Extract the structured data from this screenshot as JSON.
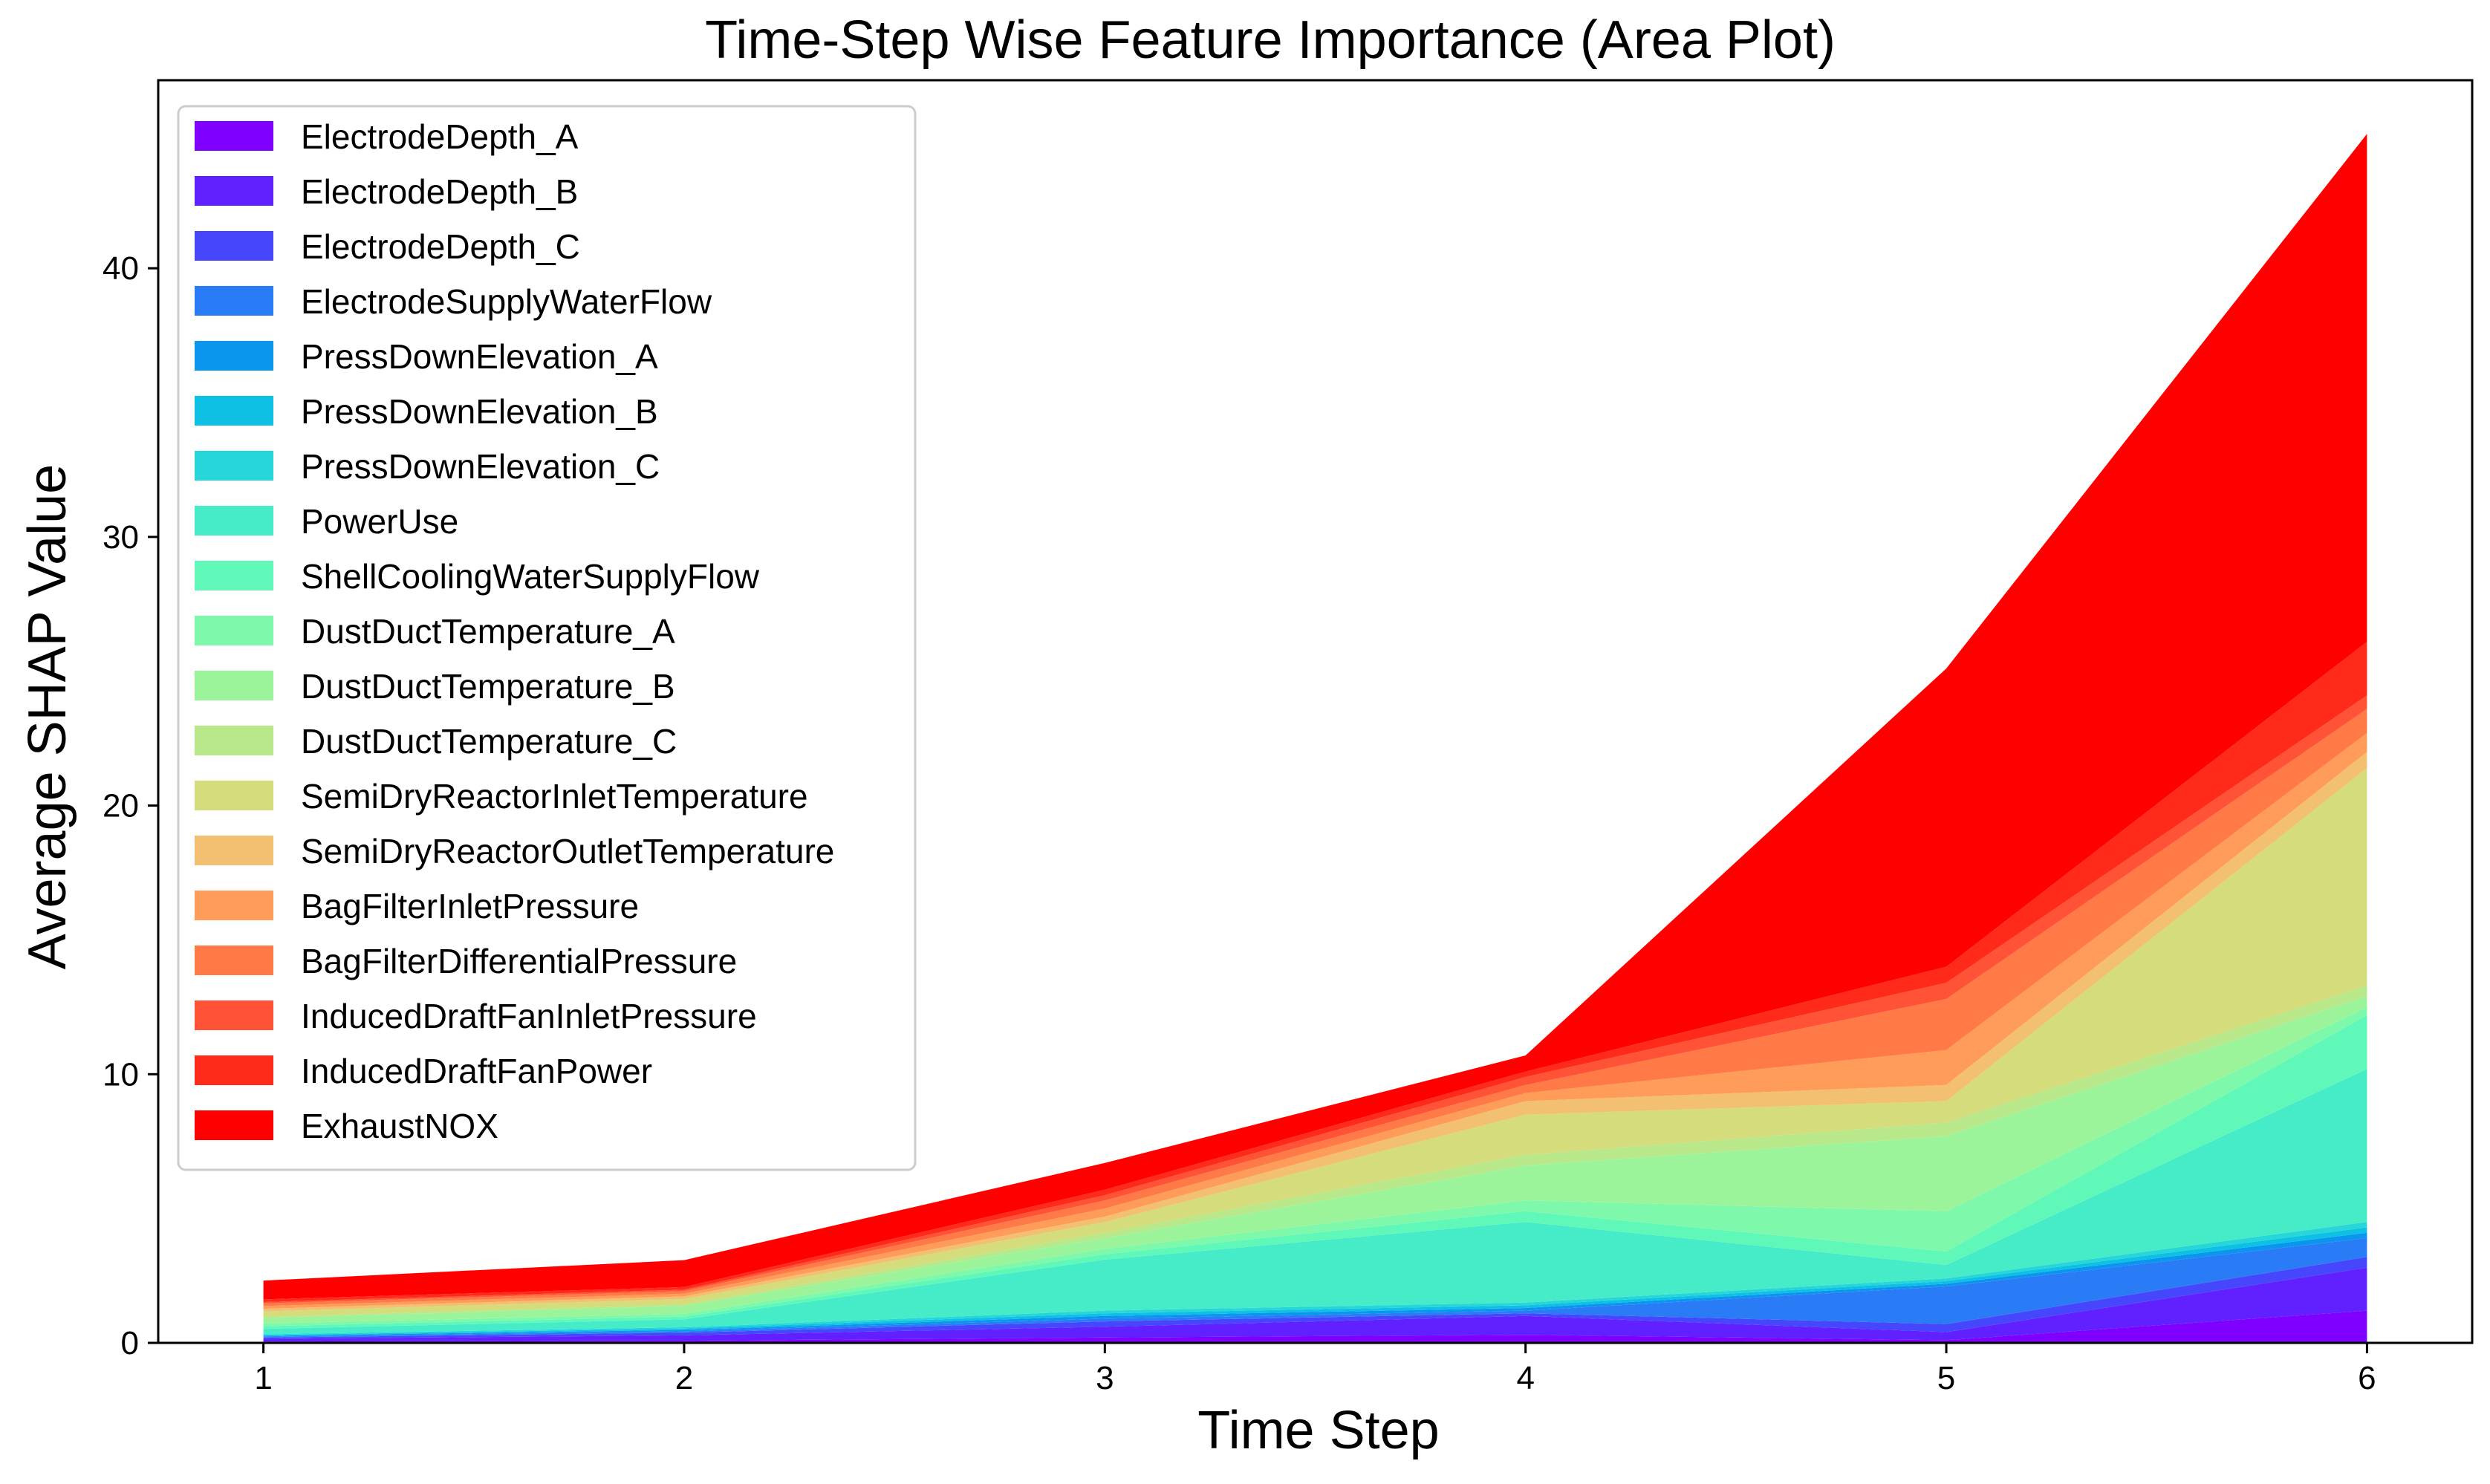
{
  "chart_data": {
    "type": "area",
    "stacked": true,
    "title": "Time-Step Wise Feature Importance (Area Plot)",
    "xlabel": "Time Step",
    "ylabel": "Average SHAP Value",
    "x": [
      1,
      2,
      3,
      4,
      5,
      6
    ],
    "xlim": [
      0.75,
      6.25
    ],
    "ylim": [
      0,
      47
    ],
    "xticks": [
      1,
      2,
      3,
      4,
      5,
      6
    ],
    "yticks": [
      0,
      10,
      20,
      30,
      40
    ],
    "grid": false,
    "legend_position": "upper-left",
    "series": [
      {
        "name": "ElectrodeDepth_A",
        "color": "#8000ff",
        "values": [
          0.05,
          0.08,
          0.2,
          0.3,
          0.1,
          1.2
        ]
      },
      {
        "name": "ElectrodeDepth_B",
        "color": "#6020ff",
        "values": [
          0.1,
          0.2,
          0.4,
          0.7,
          0.3,
          1.6
        ]
      },
      {
        "name": "ElectrodeDepth_C",
        "color": "#4646fc",
        "values": [
          0.05,
          0.1,
          0.2,
          0.1,
          0.3,
          0.4
        ]
      },
      {
        "name": "ElectrodeSupplyWaterFlow",
        "color": "#2a7cf6",
        "values": [
          0.03,
          0.05,
          0.1,
          0.1,
          1.4,
          0.7
        ]
      },
      {
        "name": "PressDownElevation_A",
        "color": "#0a96ee",
        "values": [
          0.03,
          0.05,
          0.1,
          0.1,
          0.1,
          0.2
        ]
      },
      {
        "name": "PressDownElevation_B",
        "color": "#0ec0e4",
        "values": [
          0.03,
          0.05,
          0.1,
          0.1,
          0.1,
          0.2
        ]
      },
      {
        "name": "PressDownElevation_C",
        "color": "#26d6d8",
        "values": [
          0.03,
          0.05,
          0.1,
          0.1,
          0.1,
          0.2
        ]
      },
      {
        "name": "PowerUse",
        "color": "#46ecc8",
        "values": [
          0.2,
          0.3,
          1.9,
          3.0,
          0.5,
          5.7
        ]
      },
      {
        "name": "ShellCoolingWaterSupplyFlow",
        "color": "#60f8b8",
        "values": [
          0.1,
          0.1,
          0.2,
          0.4,
          0.5,
          2.0
        ]
      },
      {
        "name": "DustDuctTemperature_A",
        "color": "#7ef8aa",
        "values": [
          0.1,
          0.1,
          0.2,
          0.4,
          1.5,
          0.3
        ]
      },
      {
        "name": "DustDuctTemperature_B",
        "color": "#9cf49a",
        "values": [
          0.2,
          0.3,
          0.4,
          1.3,
          2.8,
          0.4
        ]
      },
      {
        "name": "DustDuctTemperature_C",
        "color": "#b8e88a",
        "values": [
          0.05,
          0.05,
          0.2,
          0.4,
          0.5,
          0.4
        ]
      },
      {
        "name": "SemiDryReactorInletTemperature",
        "color": "#d4dc7c",
        "values": [
          0.2,
          0.2,
          0.4,
          1.5,
          0.8,
          8.1
        ]
      },
      {
        "name": "SemiDryReactorOutletTemperature",
        "color": "#f2c070",
        "values": [
          0.1,
          0.1,
          0.2,
          0.5,
          0.6,
          0.6
        ]
      },
      {
        "name": "BagFilterInletPressure",
        "color": "#ff9c5a",
        "values": [
          0.1,
          0.1,
          0.3,
          0.3,
          1.3,
          0.7
        ]
      },
      {
        "name": "BagFilterDifferentialPressure",
        "color": "#ff7a46",
        "values": [
          0.1,
          0.1,
          0.3,
          0.3,
          1.9,
          0.9
        ]
      },
      {
        "name": "InducedDraftFanInletPressure",
        "color": "#ff5236",
        "values": [
          0.05,
          0.05,
          0.2,
          0.3,
          0.6,
          0.5
        ]
      },
      {
        "name": "InducedDraftFanPower",
        "color": "#ff2a1a",
        "values": [
          0.1,
          0.1,
          0.2,
          0.2,
          0.6,
          2.0
        ]
      },
      {
        "name": "ExhaustNOX",
        "color": "#ff0000",
        "values": [
          0.7,
          1.0,
          1.0,
          0.6,
          11.1,
          18.9
        ]
      }
    ]
  }
}
